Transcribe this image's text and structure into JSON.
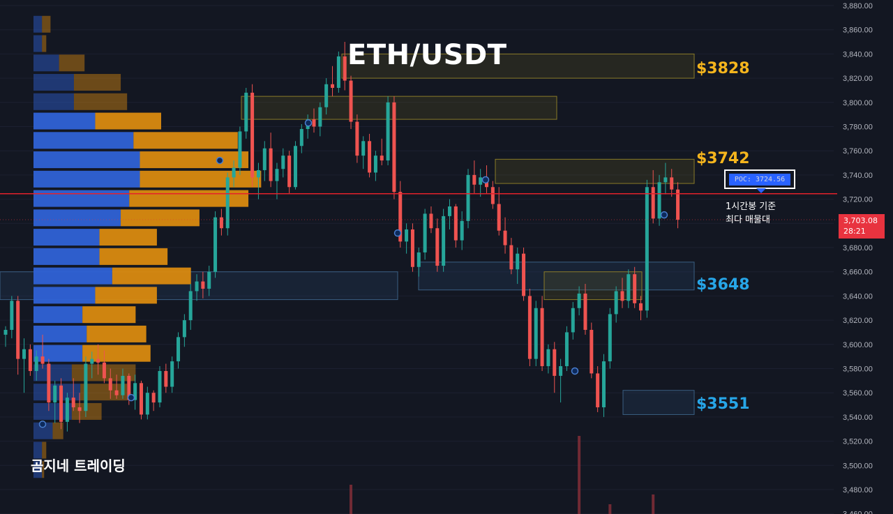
{
  "title": "ETH/USDT",
  "brand": "곰지네 트레이딩",
  "annotation": {
    "line1": "1시간봉 기준",
    "line2": "최다 매물대"
  },
  "poc_label": "POC: 3724.56",
  "current_price": {
    "price": "3,703.08",
    "countdown": "28:21"
  },
  "zone_labels": [
    {
      "text": "$3828",
      "color": "#f5b51d"
    },
    {
      "text": "$3742",
      "color": "#f5b51d"
    },
    {
      "text": "$3648",
      "color": "#27a6e8"
    },
    {
      "text": "$3551",
      "color": "#27a6e8"
    }
  ],
  "colors": {
    "background": "#131722",
    "up_candle": "#26a69a",
    "down_candle": "#ef5350",
    "profile_buy": "#2f62d6",
    "profile_sell": "#d98a10",
    "poc_line": "#e5212b",
    "axis_text": "#b2b5be"
  },
  "chart_data": {
    "type": "candlestick",
    "timeframe": "1h",
    "y_axis": {
      "ticks": [
        "3,880.00",
        "3,860.00",
        "3,840.00",
        "3,820.00",
        "3,800.00",
        "3,780.00",
        "3,760.00",
        "3,740.00",
        "3,720.00",
        "3,700.00",
        "3,680.00",
        "3,660.00",
        "3,640.00",
        "3,620.00",
        "3,600.00",
        "3,580.00",
        "3,560.00",
        "3,540.00",
        "3,520.00",
        "3,500.00",
        "3,480.00",
        "3,460.00"
      ],
      "range": [
        3457,
        3884
      ]
    },
    "poc": 3724.56,
    "zones": [
      {
        "price_low": 3820,
        "price_high": 3840,
        "color": "gold"
      },
      {
        "price_low": 3786,
        "price_high": 3805,
        "color": "gold"
      },
      {
        "price_low": 3733,
        "price_high": 3753,
        "color": "gold"
      },
      {
        "price_low": 3637,
        "price_high": 3660,
        "color": "gold"
      },
      {
        "price_low": 3637,
        "price_high": 3660,
        "color": "blue"
      },
      {
        "price_low": 3645,
        "price_high": 3668,
        "color": "blue"
      },
      {
        "price_low": 3542,
        "price_high": 3562,
        "color": "blue"
      }
    ],
    "volume_profile": [
      {
        "price": 3864,
        "buy": 4,
        "sell": 4
      },
      {
        "price": 3848,
        "buy": 4,
        "sell": 2
      },
      {
        "price": 3832,
        "buy": 12,
        "sell": 12
      },
      {
        "price": 3816,
        "buy": 19,
        "sell": 22
      },
      {
        "price": 3800,
        "buy": 19,
        "sell": 25
      },
      {
        "price": 3784,
        "buy": 29,
        "sell": 31
      },
      {
        "price": 3768,
        "buy": 47,
        "sell": 49
      },
      {
        "price": 3752,
        "buy": 50,
        "sell": 51
      },
      {
        "price": 3736,
        "buy": 50,
        "sell": 57
      },
      {
        "price": 3720,
        "buy": 45,
        "sell": 56
      },
      {
        "price": 3704,
        "buy": 41,
        "sell": 37
      },
      {
        "price": 3688,
        "buy": 31,
        "sell": 27
      },
      {
        "price": 3672,
        "buy": 31,
        "sell": 32
      },
      {
        "price": 3656,
        "buy": 37,
        "sell": 37
      },
      {
        "price": 3640,
        "buy": 29,
        "sell": 29
      },
      {
        "price": 3624,
        "buy": 23,
        "sell": 25
      },
      {
        "price": 3608,
        "buy": 25,
        "sell": 28
      },
      {
        "price": 3592,
        "buy": 23,
        "sell": 32
      },
      {
        "price": 3576,
        "buy": 18,
        "sell": 30
      },
      {
        "price": 3560,
        "buy": 22,
        "sell": 22
      },
      {
        "price": 3544,
        "buy": 18,
        "sell": 14
      },
      {
        "price": 3528,
        "buy": 9,
        "sell": 5
      },
      {
        "price": 3512,
        "buy": 4,
        "sell": 2
      },
      {
        "price": 3496,
        "buy": 4,
        "sell": 1
      }
    ],
    "candles": [
      [
        3608,
        3615,
        3598,
        3612
      ],
      [
        3612,
        3640,
        3605,
        3636
      ],
      [
        3636,
        3640,
        3575,
        3588
      ],
      [
        3588,
        3605,
        3560,
        3596
      ],
      [
        3596,
        3600,
        3574,
        3578
      ],
      [
        3578,
        3595,
        3570,
        3590
      ],
      [
        3590,
        3608,
        3580,
        3584
      ],
      [
        3584,
        3588,
        3545,
        3552
      ],
      [
        3552,
        3570,
        3535,
        3566
      ],
      [
        3566,
        3572,
        3530,
        3536
      ],
      [
        3536,
        3560,
        3528,
        3556
      ],
      [
        3556,
        3572,
        3545,
        3548
      ],
      [
        3548,
        3560,
        3535,
        3545
      ],
      [
        3545,
        3590,
        3540,
        3584
      ],
      [
        3584,
        3594,
        3572,
        3588
      ],
      [
        3588,
        3600,
        3575,
        3585
      ],
      [
        3585,
        3595,
        3568,
        3572
      ],
      [
        3572,
        3580,
        3555,
        3562
      ],
      [
        3562,
        3575,
        3555,
        3558
      ],
      [
        3558,
        3580,
        3555,
        3574
      ],
      [
        3574,
        3576,
        3550,
        3554
      ],
      [
        3554,
        3575,
        3546,
        3568
      ],
      [
        3568,
        3570,
        3538,
        3542
      ],
      [
        3542,
        3565,
        3538,
        3560
      ],
      [
        3560,
        3562,
        3545,
        3552
      ],
      [
        3552,
        3582,
        3548,
        3578
      ],
      [
        3578,
        3584,
        3560,
        3565
      ],
      [
        3565,
        3590,
        3560,
        3586
      ],
      [
        3586,
        3610,
        3580,
        3606
      ],
      [
        3606,
        3625,
        3598,
        3620
      ],
      [
        3620,
        3650,
        3612,
        3644
      ],
      [
        3644,
        3658,
        3636,
        3652
      ],
      [
        3652,
        3660,
        3638,
        3646
      ],
      [
        3646,
        3665,
        3640,
        3660
      ],
      [
        3660,
        3710,
        3655,
        3705
      ],
      [
        3705,
        3712,
        3690,
        3696
      ],
      [
        3696,
        3742,
        3690,
        3738
      ],
      [
        3738,
        3752,
        3730,
        3746
      ],
      [
        3746,
        3780,
        3740,
        3776
      ],
      [
        3776,
        3812,
        3770,
        3808
      ],
      [
        3808,
        3815,
        3730,
        3738
      ],
      [
        3738,
        3750,
        3720,
        3744
      ],
      [
        3744,
        3768,
        3735,
        3762
      ],
      [
        3762,
        3775,
        3730,
        3735
      ],
      [
        3735,
        3750,
        3720,
        3745
      ],
      [
        3745,
        3762,
        3738,
        3756
      ],
      [
        3756,
        3760,
        3725,
        3730
      ],
      [
        3730,
        3768,
        3728,
        3764
      ],
      [
        3764,
        3782,
        3758,
        3778
      ],
      [
        3778,
        3790,
        3770,
        3786
      ],
      [
        3786,
        3795,
        3775,
        3780
      ],
      [
        3780,
        3800,
        3772,
        3796
      ],
      [
        3796,
        3820,
        3790,
        3815
      ],
      [
        3815,
        3830,
        3805,
        3812
      ],
      [
        3812,
        3842,
        3808,
        3838
      ],
      [
        3838,
        3850,
        3810,
        3818
      ],
      [
        3818,
        3822,
        3778,
        3784
      ],
      [
        3784,
        3790,
        3750,
        3756
      ],
      [
        3756,
        3772,
        3745,
        3768
      ],
      [
        3768,
        3774,
        3738,
        3742
      ],
      [
        3742,
        3760,
        3735,
        3756
      ],
      [
        3756,
        3770,
        3748,
        3752
      ],
      [
        3752,
        3805,
        3748,
        3800
      ],
      [
        3800,
        3805,
        3720,
        3726
      ],
      [
        3726,
        3735,
        3680,
        3685
      ],
      [
        3685,
        3700,
        3675,
        3695
      ],
      [
        3695,
        3700,
        3660,
        3664
      ],
      [
        3664,
        3680,
        3656,
        3676
      ],
      [
        3676,
        3712,
        3670,
        3708
      ],
      [
        3708,
        3714,
        3692,
        3696
      ],
      [
        3696,
        3704,
        3660,
        3665
      ],
      [
        3665,
        3712,
        3660,
        3706
      ],
      [
        3706,
        3720,
        3695,
        3714
      ],
      [
        3714,
        3716,
        3680,
        3686
      ],
      [
        3686,
        3710,
        3678,
        3702
      ],
      [
        3702,
        3745,
        3696,
        3740
      ],
      [
        3740,
        3752,
        3725,
        3732
      ],
      [
        3732,
        3745,
        3722,
        3738
      ],
      [
        3738,
        3748,
        3725,
        3730
      ],
      [
        3730,
        3735,
        3712,
        3716
      ],
      [
        3716,
        3730,
        3690,
        3694
      ],
      [
        3694,
        3705,
        3675,
        3682
      ],
      [
        3682,
        3688,
        3658,
        3662
      ],
      [
        3662,
        3680,
        3650,
        3675
      ],
      [
        3675,
        3680,
        3636,
        3640
      ],
      [
        3640,
        3646,
        3582,
        3588
      ],
      [
        3588,
        3636,
        3582,
        3630
      ],
      [
        3630,
        3640,
        3578,
        3582
      ],
      [
        3582,
        3600,
        3576,
        3596
      ],
      [
        3596,
        3602,
        3560,
        3574
      ],
      [
        3574,
        3588,
        3552,
        3582
      ],
      [
        3582,
        3615,
        3578,
        3610
      ],
      [
        3610,
        3635,
        3604,
        3630
      ],
      [
        3630,
        3648,
        3624,
        3642
      ],
      [
        3642,
        3650,
        3608,
        3612
      ],
      [
        3612,
        3618,
        3572,
        3576
      ],
      [
        3576,
        3582,
        3544,
        3548
      ],
      [
        3548,
        3592,
        3540,
        3586
      ],
      [
        3586,
        3630,
        3580,
        3625
      ],
      [
        3625,
        3648,
        3618,
        3644
      ],
      [
        3644,
        3655,
        3630,
        3636
      ],
      [
        3636,
        3662,
        3630,
        3658
      ],
      [
        3658,
        3664,
        3630,
        3634
      ],
      [
        3634,
        3640,
        3620,
        3628
      ],
      [
        3628,
        3736,
        3622,
        3730
      ],
      [
        3730,
        3744,
        3700,
        3704
      ],
      [
        3704,
        3740,
        3698,
        3734
      ],
      [
        3734,
        3750,
        3724,
        3738
      ],
      [
        3738,
        3745,
        3722,
        3728
      ],
      [
        3728,
        3734,
        3696,
        3703
      ]
    ],
    "volume": [
      {
        "index": 93,
        "value": 8
      },
      {
        "index": 56,
        "value": 3
      },
      {
        "index": 105,
        "value": 2
      },
      {
        "index": 98,
        "value": 1
      }
    ]
  }
}
